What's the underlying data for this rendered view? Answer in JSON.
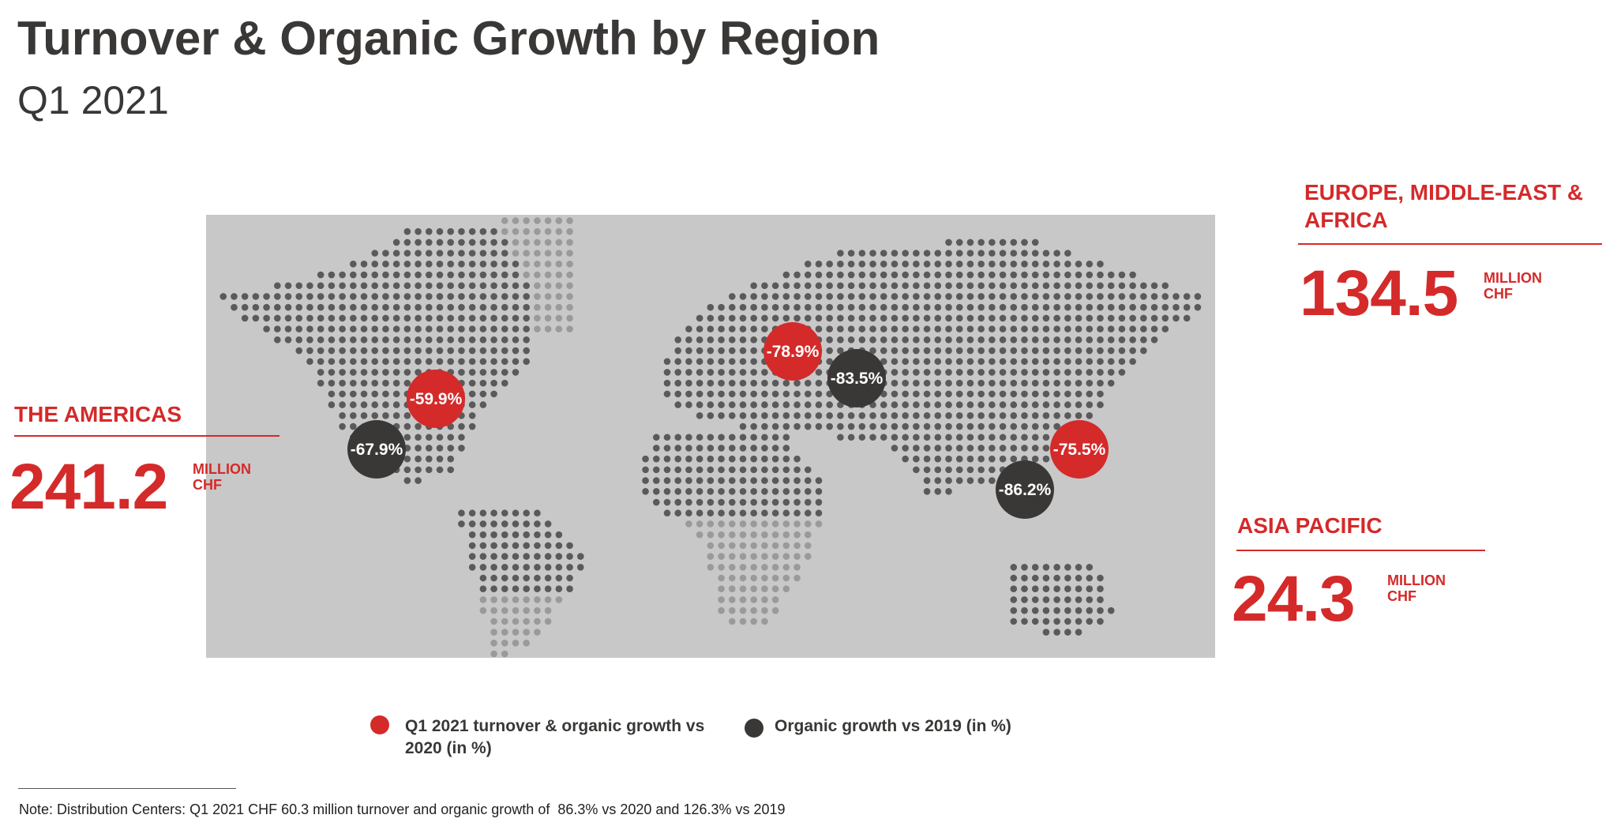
{
  "header": {
    "title": "Turnover & Organic Growth by Region",
    "subtitle": "Q1 2021"
  },
  "regions": [
    {
      "name": "THE AMERICAS",
      "turnover": "241.2",
      "unit": "MILLION",
      "currency": "CHF"
    },
    {
      "name": "EUROPE, MIDDLE-EAST & AFRICA",
      "turnover": "134.5",
      "unit": "MILLION",
      "currency": "CHF"
    },
    {
      "name": "ASIA PACIFIC",
      "turnover": "24.3",
      "unit": "MILLION",
      "currency": "CHF"
    }
  ],
  "legend": [
    {
      "label": "Q1 2021 turnover & organic growth vs 2020 (in %)",
      "color": "#d42a2a"
    },
    {
      "label": "Organic growth vs 2019 (in %)",
      "color": "#3a3836"
    }
  ],
  "markers": [
    {
      "text": "-59.9%",
      "series": 0
    },
    {
      "text": "-67.9%",
      "series": 1
    },
    {
      "text": "-78.9%",
      "series": 0
    },
    {
      "text": "-83.5%",
      "series": 1
    },
    {
      "text": "-75.5%",
      "series": 0
    },
    {
      "text": "-86.2%",
      "series": 1
    }
  ],
  "note": "Note: Distribution Centers: Q1 2021 CHF 60.3 million turnover and organic growth of  86.3% vs 2020 and 126.3% vs 2019"
}
